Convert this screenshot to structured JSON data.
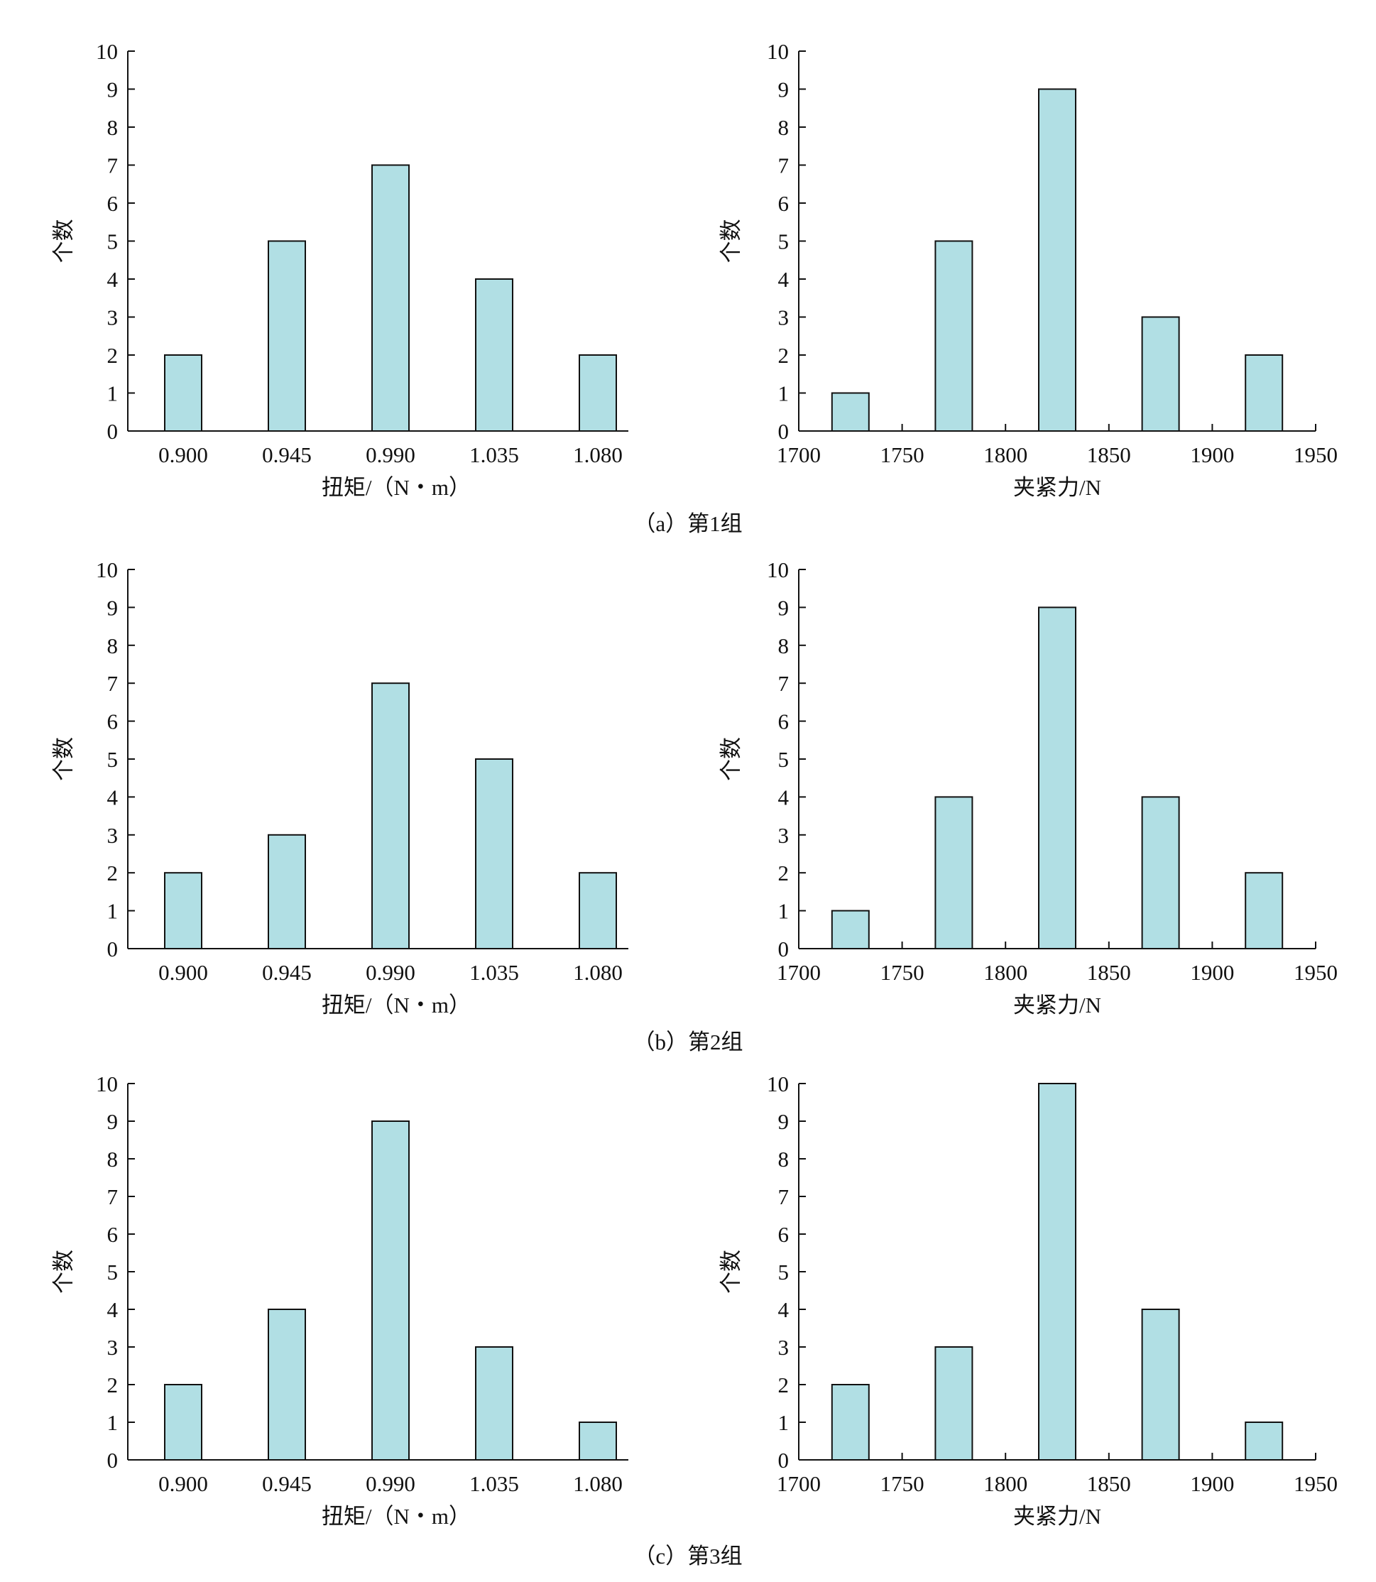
{
  "style": {
    "bar_fill": "#b1dfe4",
    "bar_stroke": "#111111",
    "axis_color": "#111111",
    "background": "#ffffff"
  },
  "groups": [
    {
      "caption": "（a）第1组"
    },
    {
      "caption": "（b）第2组"
    },
    {
      "caption": "（c）第3组"
    }
  ],
  "chart_data": [
    {
      "type": "bar",
      "group": "（a）第1组",
      "panel": "torque",
      "xlabel": "扭矩/（N・m）",
      "ylabel": "个数",
      "ylim": [
        0,
        10
      ],
      "yticks": [
        "0",
        "1",
        "2",
        "3",
        "4",
        "5",
        "6",
        "7",
        "8",
        "9",
        "10"
      ],
      "categories": [
        "0.900",
        "0.945",
        "0.990",
        "1.035",
        "1.080"
      ],
      "values": [
        2,
        5,
        7,
        4,
        2
      ]
    },
    {
      "type": "bar",
      "group": "（a）第1组",
      "panel": "clamp",
      "xlabel": "夹紧力/N",
      "ylabel": "个数",
      "ylim": [
        0,
        10
      ],
      "xlim": [
        1700,
        1950
      ],
      "yticks": [
        "0",
        "1",
        "2",
        "3",
        "4",
        "5",
        "6",
        "7",
        "8",
        "9",
        "10"
      ],
      "xticks": [
        "1700",
        "1750",
        "1800",
        "1850",
        "1900",
        "1950"
      ],
      "bins": [
        1725,
        1775,
        1825,
        1875,
        1925
      ],
      "values": [
        1,
        5,
        9,
        3,
        2
      ]
    },
    {
      "type": "bar",
      "group": "（b）第2组",
      "panel": "torque",
      "xlabel": "扭矩/（N・m）",
      "ylabel": "个数",
      "ylim": [
        0,
        10
      ],
      "yticks": [
        "0",
        "1",
        "2",
        "3",
        "4",
        "5",
        "6",
        "7",
        "8",
        "9",
        "10"
      ],
      "categories": [
        "0.900",
        "0.945",
        "0.990",
        "1.035",
        "1.080"
      ],
      "values": [
        2,
        3,
        7,
        5,
        2
      ]
    },
    {
      "type": "bar",
      "group": "（b）第2组",
      "panel": "clamp",
      "xlabel": "夹紧力/N",
      "ylabel": "个数",
      "ylim": [
        0,
        10
      ],
      "xlim": [
        1700,
        1950
      ],
      "yticks": [
        "0",
        "1",
        "2",
        "3",
        "4",
        "5",
        "6",
        "7",
        "8",
        "9",
        "10"
      ],
      "xticks": [
        "1700",
        "1750",
        "1800",
        "1850",
        "1900",
        "1950"
      ],
      "bins": [
        1725,
        1775,
        1825,
        1875,
        1925
      ],
      "values": [
        1,
        4,
        9,
        4,
        2
      ]
    },
    {
      "type": "bar",
      "group": "（c）第3组",
      "panel": "torque",
      "xlabel": "扭矩/（N・m）",
      "ylabel": "个数",
      "ylim": [
        0,
        10
      ],
      "yticks": [
        "0",
        "1",
        "2",
        "3",
        "4",
        "5",
        "6",
        "7",
        "8",
        "9",
        "10"
      ],
      "categories": [
        "0.900",
        "0.945",
        "0.990",
        "1.035",
        "1.080"
      ],
      "values": [
        2,
        4,
        9,
        3,
        1
      ]
    },
    {
      "type": "bar",
      "group": "（c）第3组",
      "panel": "clamp",
      "xlabel": "夹紧力/N",
      "ylabel": "个数",
      "ylim": [
        0,
        10
      ],
      "xlim": [
        1700,
        1950
      ],
      "yticks": [
        "0",
        "1",
        "2",
        "3",
        "4",
        "5",
        "6",
        "7",
        "8",
        "9",
        "10"
      ],
      "xticks": [
        "1700",
        "1750",
        "1800",
        "1850",
        "1900",
        "1950"
      ],
      "bins": [
        1725,
        1775,
        1825,
        1875,
        1925
      ],
      "values": [
        2,
        3,
        10,
        4,
        1
      ]
    }
  ]
}
